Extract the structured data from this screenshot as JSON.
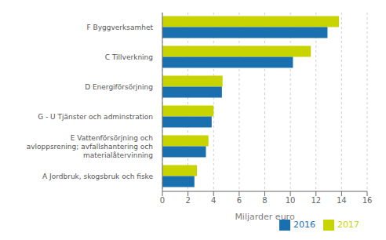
{
  "chart_data": {
    "type": "bar",
    "orientation": "horizontal",
    "categories": [
      "A Jordbruk, skogsbruk och fiske",
      "E Vattenförsörjning och\navloppsrening; avfallshantering och\nmaterialåtervinning",
      "G - U Tjänster och adminstration",
      "D Energiförsörjning",
      "C Tillverkning",
      "F Byggverksamhet"
    ],
    "series": [
      {
        "name": "2017",
        "color": "#c8d400",
        "values": [
          2.7,
          3.6,
          4.0,
          4.7,
          11.6,
          13.8
        ]
      },
      {
        "name": "2016",
        "color": "#1a6faf",
        "values": [
          2.5,
          3.4,
          3.85,
          4.65,
          10.2,
          12.9
        ]
      }
    ],
    "xlabel": "Miljarder euro",
    "xlim": [
      0,
      16
    ],
    "xticks": [
      0,
      2,
      4,
      6,
      8,
      10,
      12,
      14,
      16
    ],
    "grid": true,
    "legend": "lower right"
  }
}
